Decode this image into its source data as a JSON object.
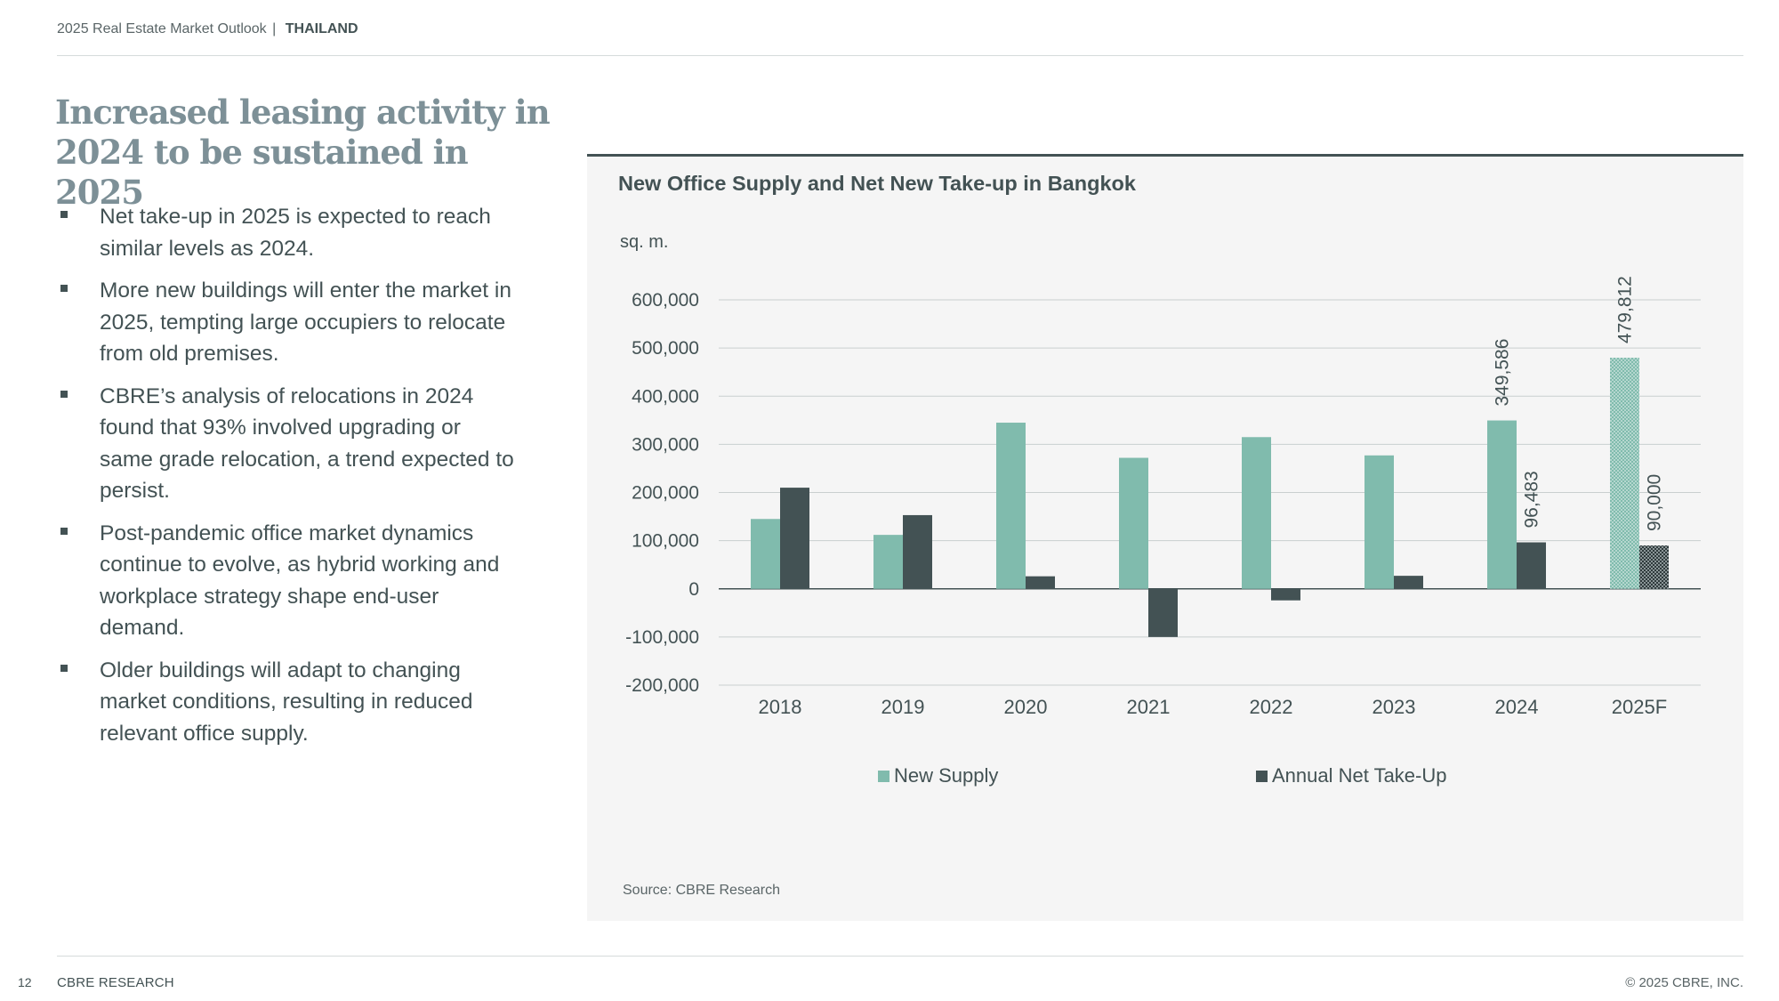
{
  "header": {
    "report": "2025 Real Estate Market Outlook",
    "separator": "|",
    "country": "THAILAND"
  },
  "page_title": "Increased leasing activity in 2024 to be sustained in 2025",
  "bullets": [
    "Net take-up in 2025 is expected to reach similar levels as 2024.",
    "More new buildings will enter the market in 2025, tempting large occupiers to relocate from old premises.",
    "CBRE’s analysis of relocations in 2024 found that 93% involved upgrading or same grade relocation, a trend expected to persist.",
    "Post-pandemic office market dynamics continue to evolve, as hybrid working and workplace strategy shape end-user demand.",
    "Older buildings will adapt to changing market conditions, resulting in reduced relevant office supply."
  ],
  "chart_data": {
    "type": "bar",
    "title": "New Office Supply and Net New Take-up in Bangkok",
    "ylabel": "sq. m.",
    "xlabel": "",
    "ylim": [
      -200000,
      600000
    ],
    "yticks": [
      600000,
      500000,
      400000,
      300000,
      200000,
      100000,
      0,
      -100000,
      -200000
    ],
    "ytick_labels": [
      "600,000",
      "500,000",
      "400,000",
      "300,000",
      "200,000",
      "100,000",
      "0",
      "-100,000",
      "-200,000"
    ],
    "categories": [
      "2018",
      "2019",
      "2020",
      "2021",
      "2022",
      "2023",
      "2024",
      "2025F"
    ],
    "series": [
      {
        "name": "New Supply",
        "color": "#80bbad",
        "values": [
          145000,
          112000,
          345000,
          272000,
          315000,
          277000,
          349586,
          479812
        ],
        "data_labels": {
          "6": "349,586",
          "7": "479,812"
        }
      },
      {
        "name": "Annual Net Take-Up",
        "color": "#435254",
        "values": [
          210000,
          153000,
          26000,
          -100000,
          -24000,
          27000,
          96483,
          90000
        ],
        "data_labels": {
          "6": "96,483",
          "7": "90,000"
        }
      }
    ],
    "forecast_category": "2025F",
    "forecast_style": "hatched",
    "grid": true,
    "legend": "bottom-center"
  },
  "source": "Source: CBRE Research",
  "footer": {
    "page_number": "12",
    "left": "CBRE RESEARCH",
    "right": "© 2025 CBRE, INC."
  }
}
